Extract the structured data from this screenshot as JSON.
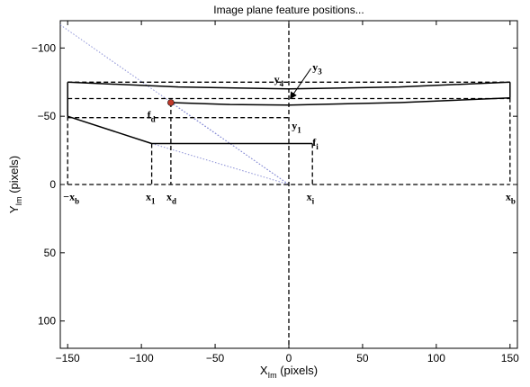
{
  "chart_data": {
    "type": "line",
    "title": "Image plane feature positions...",
    "xlabel": {
      "base": "X",
      "sub": "Im",
      "rest": " (pixels)"
    },
    "ylabel": {
      "base": "Y",
      "sub": "Im",
      "rest": " (pixels)"
    },
    "xlim": [
      -155,
      155
    ],
    "ylim": [
      120,
      -120
    ],
    "y_reversed": true,
    "grid": false,
    "xticks": [
      -150,
      -100,
      -50,
      0,
      50,
      100,
      150
    ],
    "yticks": [
      -100,
      -50,
      0,
      50,
      100
    ],
    "xtick_labels": [
      "−150",
      "−100",
      "−50",
      "0",
      "50",
      "100",
      "150"
    ],
    "ytick_labels": [
      "−100",
      "−50",
      "0",
      "50",
      "100"
    ],
    "solid_lines": [
      {
        "name": "top-curve",
        "x": [
          -150,
          -75,
          0,
          75,
          150
        ],
        "y": [
          -75,
          -71.5,
          -70,
          -71.5,
          -75
        ]
      },
      {
        "name": "middle-curve",
        "x": [
          -80,
          -40,
          0,
          75,
          150
        ],
        "y": [
          -60,
          -58.6,
          -58.2,
          -60,
          -63.5
        ]
      },
      {
        "name": "left-edge",
        "x": [
          -150,
          -150
        ],
        "y": [
          -75,
          -50
        ]
      },
      {
        "name": "right-edge",
        "x": [
          150,
          150
        ],
        "y": [
          -75,
          -63.5
        ]
      },
      {
        "name": "diagonal",
        "x": [
          -150,
          -93
        ],
        "y": [
          -50,
          -30
        ]
      },
      {
        "name": "lower-line",
        "x": [
          -93,
          16
        ],
        "y": [
          -30,
          -30
        ]
      }
    ],
    "dashed_lines": [
      {
        "name": "x-axis-line",
        "x": [
          -150,
          150
        ],
        "y": [
          0,
          0
        ]
      },
      {
        "name": "y-axis-line",
        "x": [
          0,
          0
        ],
        "y": [
          -118,
          120
        ]
      },
      {
        "name": "top-band",
        "x": [
          -150,
          150
        ],
        "y": [
          -75,
          -75
        ]
      },
      {
        "name": "mid-band",
        "x": [
          -150,
          150
        ],
        "y": [
          -63,
          -63
        ]
      },
      {
        "name": "y1-band",
        "x": [
          -150,
          0
        ],
        "y": [
          -49,
          -49
        ]
      },
      {
        "name": "drop-left",
        "x": [
          -150,
          -150
        ],
        "y": [
          -50,
          0
        ]
      },
      {
        "name": "drop-right",
        "x": [
          150,
          150
        ],
        "y": [
          -63.5,
          0
        ]
      },
      {
        "name": "drop-x1",
        "x": [
          -93,
          -93
        ],
        "y": [
          -30,
          0
        ]
      },
      {
        "name": "drop-xd",
        "x": [
          -80,
          -80
        ],
        "y": [
          -60,
          0
        ]
      },
      {
        "name": "drop-xi",
        "x": [
          16,
          16
        ],
        "y": [
          -30,
          0
        ]
      }
    ],
    "dotted_lines": [
      {
        "name": "ray-1",
        "x": [
          -155,
          0
        ],
        "y": [
          -117,
          0
        ]
      },
      {
        "name": "ray-2",
        "x": [
          -80,
          0
        ],
        "y": [
          -60,
          0
        ]
      },
      {
        "name": "ray-3",
        "x": [
          -93,
          0
        ],
        "y": [
          -30,
          0
        ]
      }
    ],
    "points": [
      {
        "name": "fd-point",
        "x": -80,
        "y": -60,
        "color": "#c0392b"
      }
    ],
    "annotations": [
      {
        "base": "y",
        "sub": "4",
        "x": -10,
        "y": -81
      },
      {
        "base": "y",
        "sub": "3",
        "x": 16,
        "y": -90
      },
      {
        "base": "y",
        "sub": "1",
        "x": 2,
        "y": -47
      },
      {
        "base": "f",
        "sub": "d",
        "x": -96,
        "y": -55
      },
      {
        "base": "f",
        "sub": "i",
        "x": 16,
        "y": -35
      },
      {
        "base": "−x",
        "sub": "b",
        "x": -153,
        "y": 5
      },
      {
        "base": "x",
        "sub": "1",
        "x": -97,
        "y": 5
      },
      {
        "base": "x",
        "sub": "d",
        "x": -83,
        "y": 5
      },
      {
        "base": "x",
        "sub": "i",
        "x": 12,
        "y": 5
      },
      {
        "base": "x",
        "sub": "b",
        "x": 147,
        "y": 5
      }
    ],
    "arrow": {
      "name": "y3-arrow",
      "from": [
        15,
        -85
      ],
      "to": [
        1,
        -63
      ]
    },
    "colors": {
      "line": "#000000",
      "dotted": "#8a8fd6",
      "point": "#c0392b"
    }
  }
}
